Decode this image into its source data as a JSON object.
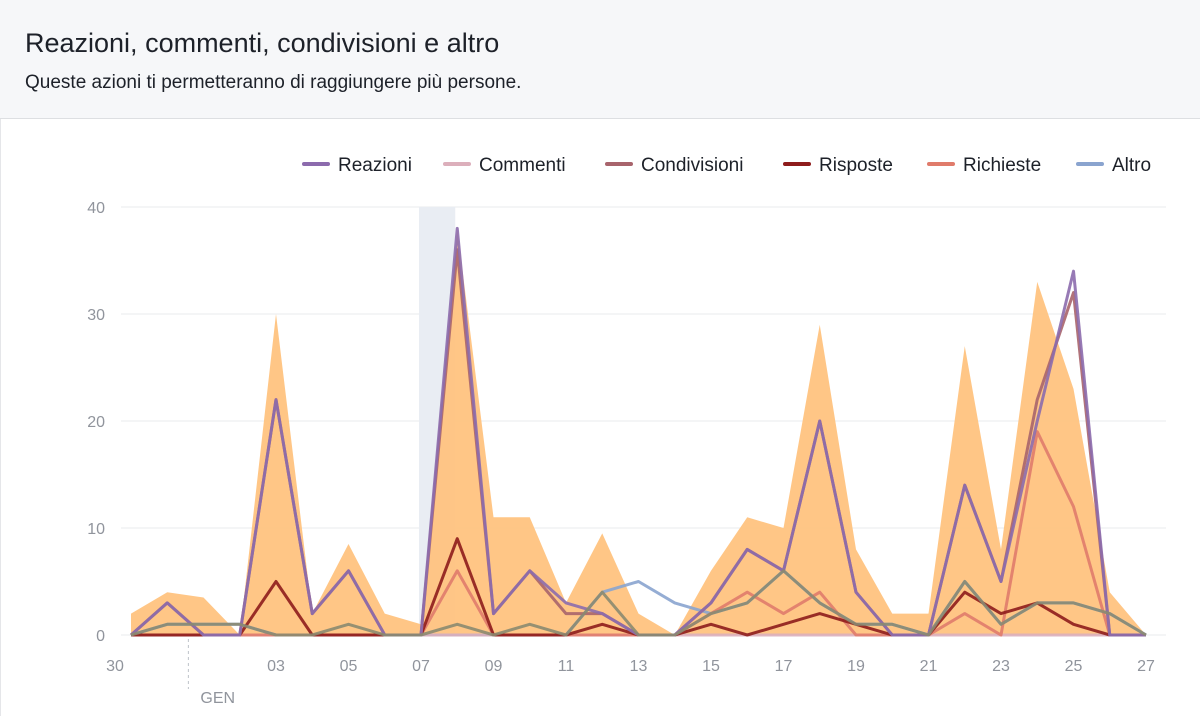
{
  "header": {
    "title": "Reazioni, commenti, condivisioni e altro",
    "subtitle": "Queste azioni ti permetteranno di raggiungere più persone."
  },
  "colors": {
    "area": "#ffc37f",
    "highlight_band": "#e9edf3",
    "grid": "#e9ebee",
    "axis_text": "#90949c"
  },
  "chart_data": {
    "type": "line",
    "x": [
      "30 dic",
      "31 dic",
      "01 gen",
      "02 gen",
      "03 gen",
      "04 gen",
      "05 gen",
      "06 gen",
      "07 gen",
      "08 gen",
      "09 gen",
      "10 gen",
      "11 gen",
      "12 gen",
      "13 gen",
      "14 gen",
      "15 gen",
      "16 gen",
      "17 gen",
      "18 gen",
      "19 gen",
      "20 gen",
      "21 gen",
      "22 gen",
      "23 gen",
      "24 gen",
      "25 gen",
      "26 gen",
      "27 gen"
    ],
    "x_tick_labels": [
      "30",
      "03",
      "05",
      "07",
      "09",
      "11",
      "13",
      "15",
      "17",
      "19",
      "21",
      "23",
      "25",
      "27"
    ],
    "x_month_label": "GEN",
    "ylim": [
      0,
      40
    ],
    "y_ticks": [
      0,
      10,
      20,
      30,
      40
    ],
    "grid": true,
    "legend_position": "top-right",
    "highlight_date": "07 gen",
    "area_total": [
      2,
      4,
      3.5,
      0,
      30,
      2,
      8.5,
      2,
      1,
      38,
      11,
      11,
      3,
      9.5,
      2,
      0,
      6,
      11,
      10,
      29,
      8,
      2,
      2,
      27,
      8,
      33,
      23,
      4,
      0
    ],
    "series": [
      {
        "name": "Reazioni",
        "color": "#8c6bad",
        "values": [
          0,
          3,
          0,
          0,
          22,
          2,
          6,
          0,
          0,
          38,
          2,
          6,
          3,
          2,
          0,
          0,
          3,
          8,
          6,
          20,
          4,
          0,
          0,
          14,
          5,
          20,
          34,
          0,
          0
        ]
      },
      {
        "name": "Commenti",
        "color": "#dcafbb",
        "values": [
          0,
          0,
          0,
          0,
          0,
          0,
          0,
          0,
          0,
          0,
          0,
          0,
          0,
          0,
          0,
          0,
          0,
          0,
          0,
          0,
          0,
          0,
          0,
          0,
          0,
          0,
          0,
          0,
          0
        ]
      },
      {
        "name": "Condivisioni",
        "color": "#a8646c",
        "values": [
          0,
          3,
          0,
          0,
          22,
          2,
          6,
          0,
          0,
          36,
          2,
          6,
          2,
          2,
          0,
          0,
          3,
          8,
          6,
          20,
          4,
          0,
          0,
          14,
          5,
          22,
          32,
          0,
          0
        ]
      },
      {
        "name": "Risposte",
        "color": "#8e1c1c",
        "values": [
          0,
          0,
          0,
          0,
          5,
          0,
          0,
          0,
          0,
          9,
          0,
          0,
          0,
          1,
          0,
          0,
          1,
          0,
          1,
          2,
          1,
          0,
          0,
          4,
          2,
          3,
          1,
          0,
          0
        ]
      },
      {
        "name": "Richieste",
        "color": "#e07b6b",
        "values": [
          0,
          0,
          0,
          0,
          0,
          0,
          0,
          0,
          0,
          6,
          0,
          0,
          0,
          0,
          0,
          0,
          2,
          4,
          2,
          4,
          0,
          0,
          0,
          2,
          0,
          19,
          12,
          0,
          0
        ]
      },
      {
        "name": "Altro",
        "color": "#8aa4cf",
        "values": [
          0,
          1,
          1,
          1,
          0,
          0,
          0,
          0,
          0,
          0,
          0,
          0,
          0,
          4,
          5,
          3,
          2,
          3,
          6,
          3,
          1,
          1,
          0,
          5,
          1,
          3,
          3,
          2,
          0
        ]
      }
    ],
    "extra_line": {
      "color": "#8b8a70",
      "values": [
        0,
        1,
        1,
        1,
        0,
        0,
        1,
        0,
        0,
        1,
        0,
        1,
        0,
        4,
        0,
        0,
        2,
        3,
        6,
        3,
        1,
        1,
        0,
        5,
        1,
        3,
        3,
        2,
        0
      ]
    }
  }
}
